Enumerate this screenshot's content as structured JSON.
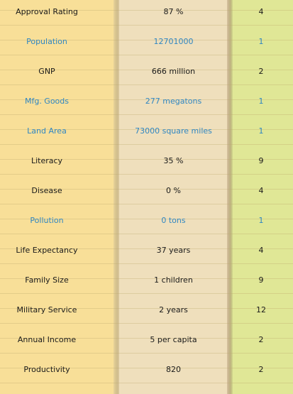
{
  "rows": [
    {
      "stat": "Approval Rating",
      "value": "87 %",
      "rank": "4",
      "highlight": false
    },
    {
      "stat": "Population",
      "value": "12701000",
      "rank": "1",
      "highlight": true
    },
    {
      "stat": "GNP",
      "value": "666 million",
      "rank": "2",
      "highlight": false
    },
    {
      "stat": "Mfg. Goods",
      "value": "277 megatons",
      "rank": "1",
      "highlight": true
    },
    {
      "stat": "Land Area",
      "value": "73000 square miles",
      "rank": "1",
      "highlight": true
    },
    {
      "stat": "Literacy",
      "value": "35 %",
      "rank": "9",
      "highlight": false
    },
    {
      "stat": "Disease",
      "value": "0 %",
      "rank": "4",
      "highlight": false
    },
    {
      "stat": "Pollution",
      "value": "0 tons",
      "rank": "1",
      "highlight": true
    },
    {
      "stat": "Life Expectancy",
      "value": "37 years",
      "rank": "4",
      "highlight": false
    },
    {
      "stat": "Family Size",
      "value": "1 children",
      "rank": "9",
      "highlight": false
    },
    {
      "stat": "Military Service",
      "value": "2 years",
      "rank": "12",
      "highlight": false
    },
    {
      "stat": "Annual Income",
      "value": "5 per capita",
      "rank": "2",
      "highlight": false
    },
    {
      "stat": "Productivity",
      "value": "820",
      "rank": "2",
      "highlight": false
    }
  ],
  "colors": {
    "highlight_text": "#2f86c2",
    "normal_text": "#1a1a1a",
    "stat_column_bg": "#f8df98",
    "value_column_bg": "#efdfbc",
    "rank_column_bg": "#e0e796"
  }
}
